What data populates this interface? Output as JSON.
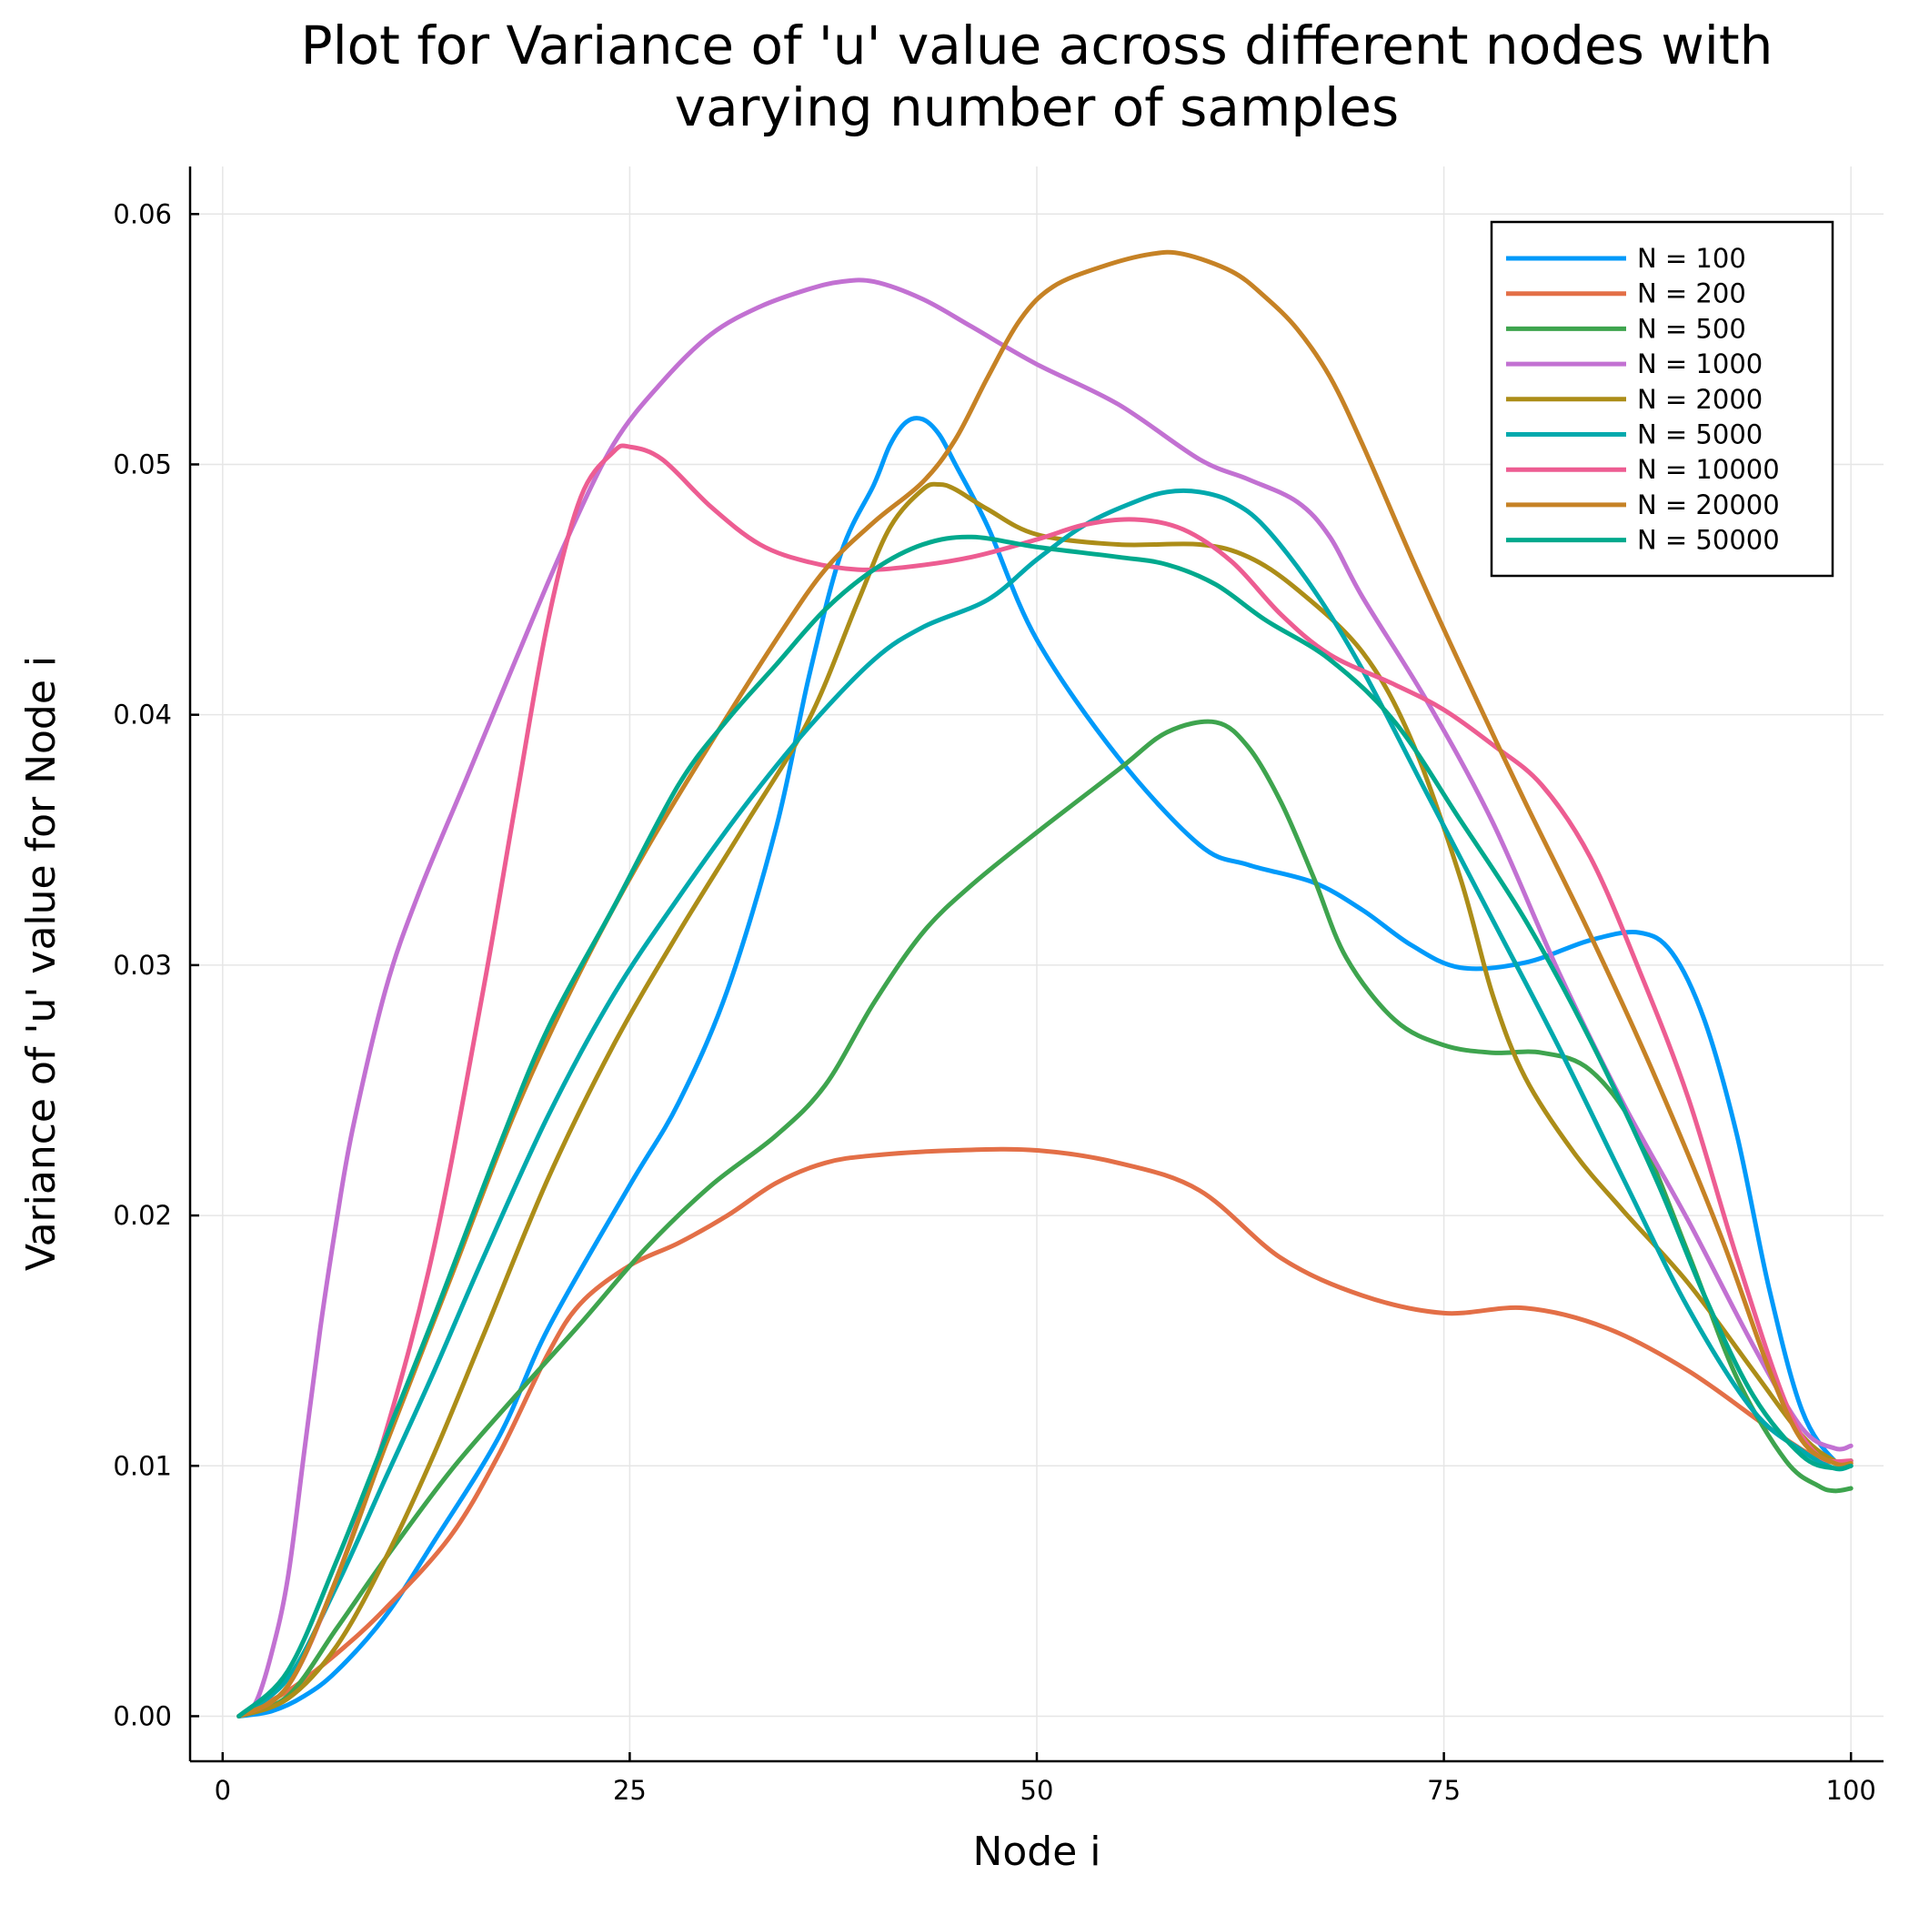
{
  "chart_data": {
    "type": "line",
    "title_lines": [
      "Plot for Variance of 'u' value across different nodes with",
      "varying number of samples"
    ],
    "xlabel": "Node i",
    "ylabel": "Variance of 'u' value for Node i",
    "xlim": [
      -2,
      102
    ],
    "ylim": [
      -0.0018,
      0.0619
    ],
    "xticks": [
      0,
      25,
      50,
      75,
      100
    ],
    "xtick_labels": [
      "0",
      "25",
      "50",
      "75",
      "100"
    ],
    "yticks": [
      0.0,
      0.01,
      0.02,
      0.03,
      0.04,
      0.05,
      0.06
    ],
    "ytick_labels": [
      "0.00",
      "0.01",
      "0.02",
      "0.03",
      "0.04",
      "0.05",
      "0.06"
    ],
    "grid": true,
    "legend_position": "top-right",
    "series": [
      {
        "name": "N = 100",
        "color": "#009AFA",
        "points": [
          [
            1,
            0
          ],
          [
            3,
            0.0002
          ],
          [
            5,
            0.0008
          ],
          [
            7,
            0.0018
          ],
          [
            10,
            0.004
          ],
          [
            13,
            0.007
          ],
          [
            17,
            0.0112
          ],
          [
            20,
            0.0155
          ],
          [
            25,
            0.0212
          ],
          [
            28,
            0.0245
          ],
          [
            31,
            0.029
          ],
          [
            34,
            0.0355
          ],
          [
            36,
            0.0415
          ],
          [
            38,
            0.0465
          ],
          [
            40,
            0.0492
          ],
          [
            41,
            0.0508
          ],
          [
            42,
            0.0517
          ],
          [
            43,
            0.0518
          ],
          [
            44,
            0.0512
          ],
          [
            45,
            0.05
          ],
          [
            47,
            0.0475
          ],
          [
            50,
            0.043
          ],
          [
            55,
            0.0383
          ],
          [
            60,
            0.0348
          ],
          [
            63,
            0.034
          ],
          [
            67,
            0.0333
          ],
          [
            70,
            0.0322
          ],
          [
            73,
            0.0308
          ],
          [
            76,
            0.0299
          ],
          [
            80,
            0.0301
          ],
          [
            84,
            0.031
          ],
          [
            87,
            0.0313
          ],
          [
            89,
            0.0305
          ],
          [
            91,
            0.0278
          ],
          [
            93,
            0.0232
          ],
          [
            95,
            0.017
          ],
          [
            97,
            0.0122
          ],
          [
            99,
            0.0102
          ],
          [
            100,
            0.0102
          ]
        ]
      },
      {
        "name": "N = 200",
        "color": "#E36F47",
        "points": [
          [
            1,
            0
          ],
          [
            4,
            0.001
          ],
          [
            7,
            0.0025
          ],
          [
            10,
            0.0043
          ],
          [
            14,
            0.0072
          ],
          [
            17,
            0.0105
          ],
          [
            20,
            0.0145
          ],
          [
            22,
            0.0165
          ],
          [
            25,
            0.018
          ],
          [
            28,
            0.0189
          ],
          [
            31,
            0.02
          ],
          [
            34,
            0.0213
          ],
          [
            37,
            0.0221
          ],
          [
            40,
            0.0224
          ],
          [
            45,
            0.0226
          ],
          [
            50,
            0.0226
          ],
          [
            55,
            0.0221
          ],
          [
            60,
            0.021
          ],
          [
            65,
            0.0183
          ],
          [
            70,
            0.0168
          ],
          [
            75,
            0.0161
          ],
          [
            80,
            0.0163
          ],
          [
            85,
            0.0155
          ],
          [
            90,
            0.0138
          ],
          [
            95,
            0.0115
          ],
          [
            98,
            0.0103
          ],
          [
            100,
            0.0101
          ]
        ]
      },
      {
        "name": "N = 500",
        "color": "#3EA44E",
        "points": [
          [
            1,
            0
          ],
          [
            4,
            0.0008
          ],
          [
            7,
            0.0035
          ],
          [
            10,
            0.0063
          ],
          [
            14,
            0.0098
          ],
          [
            18,
            0.0128
          ],
          [
            22,
            0.0157
          ],
          [
            26,
            0.0187
          ],
          [
            30,
            0.0212
          ],
          [
            34,
            0.0232
          ],
          [
            37,
            0.0252
          ],
          [
            40,
            0.0285
          ],
          [
            43,
            0.0313
          ],
          [
            46,
            0.0332
          ],
          [
            50,
            0.0353
          ],
          [
            55,
            0.0378
          ],
          [
            58,
            0.0393
          ],
          [
            61,
            0.0397
          ],
          [
            63,
            0.0387
          ],
          [
            65,
            0.0365
          ],
          [
            67,
            0.0335
          ],
          [
            69,
            0.0303
          ],
          [
            72,
            0.0278
          ],
          [
            75,
            0.0268
          ],
          [
            78,
            0.0265
          ],
          [
            81,
            0.0265
          ],
          [
            84,
            0.0258
          ],
          [
            87,
            0.0232
          ],
          [
            90,
            0.0185
          ],
          [
            93,
            0.0135
          ],
          [
            96,
            0.0102
          ],
          [
            98,
            0.0092
          ],
          [
            99,
            0.009
          ],
          [
            100,
            0.0091
          ]
        ]
      },
      {
        "name": "N = 1000",
        "color": "#C271D2",
        "points": [
          [
            1,
            0
          ],
          [
            2,
            0.0005
          ],
          [
            3,
            0.0025
          ],
          [
            4,
            0.0055
          ],
          [
            5,
            0.0105
          ],
          [
            6,
            0.0155
          ],
          [
            7,
            0.0198
          ],
          [
            8,
            0.0235
          ],
          [
            10,
            0.029
          ],
          [
            12,
            0.0328
          ],
          [
            15,
            0.0375
          ],
          [
            18,
            0.0422
          ],
          [
            21,
            0.0468
          ],
          [
            24,
            0.0508
          ],
          [
            27,
            0.0533
          ],
          [
            30,
            0.0552
          ],
          [
            33,
            0.0563
          ],
          [
            36,
            0.057
          ],
          [
            38,
            0.0573
          ],
          [
            40,
            0.0573
          ],
          [
            43,
            0.0566
          ],
          [
            46,
            0.0555
          ],
          [
            50,
            0.054
          ],
          [
            55,
            0.0524
          ],
          [
            60,
            0.0502
          ],
          [
            63,
            0.0494
          ],
          [
            66,
            0.0485
          ],
          [
            68,
            0.0471
          ],
          [
            70,
            0.0447
          ],
          [
            74,
            0.0405
          ],
          [
            78,
            0.0357
          ],
          [
            82,
            0.0298
          ],
          [
            86,
            0.0245
          ],
          [
            90,
            0.0198
          ],
          [
            94,
            0.0148
          ],
          [
            97,
            0.0115
          ],
          [
            99,
            0.0107
          ],
          [
            100,
            0.0108
          ]
        ]
      },
      {
        "name": "N = 2000",
        "color": "#AC8D18",
        "points": [
          [
            1,
            0
          ],
          [
            4,
            0.0007
          ],
          [
            7,
            0.0028
          ],
          [
            10,
            0.0063
          ],
          [
            13,
            0.0105
          ],
          [
            16,
            0.0152
          ],
          [
            20,
            0.0215
          ],
          [
            24,
            0.0268
          ],
          [
            28,
            0.0313
          ],
          [
            32,
            0.0355
          ],
          [
            36,
            0.0398
          ],
          [
            39,
            0.0445
          ],
          [
            41,
            0.0475
          ],
          [
            43,
            0.049
          ],
          [
            44,
            0.0492
          ],
          [
            45,
            0.049
          ],
          [
            47,
            0.0482
          ],
          [
            50,
            0.0472
          ],
          [
            55,
            0.0468
          ],
          [
            60,
            0.0468
          ],
          [
            63,
            0.0463
          ],
          [
            66,
            0.045
          ],
          [
            70,
            0.0425
          ],
          [
            73,
            0.039
          ],
          [
            76,
            0.0335
          ],
          [
            78,
            0.0288
          ],
          [
            80,
            0.0255
          ],
          [
            83,
            0.0225
          ],
          [
            86,
            0.0202
          ],
          [
            90,
            0.0173
          ],
          [
            94,
            0.0138
          ],
          [
            97,
            0.0112
          ],
          [
            99,
            0.0102
          ],
          [
            100,
            0.0102
          ]
        ]
      },
      {
        "name": "N = 5000",
        "color": "#00A9AD",
        "points": [
          [
            1,
            0
          ],
          [
            4,
            0.0015
          ],
          [
            7,
            0.0052
          ],
          [
            10,
            0.0095
          ],
          [
            13,
            0.0138
          ],
          [
            16,
            0.0183
          ],
          [
            20,
            0.024
          ],
          [
            24,
            0.0288
          ],
          [
            28,
            0.0327
          ],
          [
            32,
            0.0363
          ],
          [
            36,
            0.0395
          ],
          [
            40,
            0.0422
          ],
          [
            43,
            0.0435
          ],
          [
            47,
            0.0446
          ],
          [
            50,
            0.0462
          ],
          [
            53,
            0.0476
          ],
          [
            56,
            0.0485
          ],
          [
            58,
            0.0489
          ],
          [
            60,
            0.0489
          ],
          [
            62,
            0.0485
          ],
          [
            64,
            0.0475
          ],
          [
            67,
            0.045
          ],
          [
            70,
            0.0418
          ],
          [
            74,
            0.0368
          ],
          [
            78,
            0.0318
          ],
          [
            82,
            0.0268
          ],
          [
            86,
            0.0215
          ],
          [
            90,
            0.0163
          ],
          [
            94,
            0.0122
          ],
          [
            97,
            0.0106
          ],
          [
            99,
            0.0099
          ],
          [
            100,
            0.01
          ]
        ]
      },
      {
        "name": "N = 10000",
        "color": "#ED5D92",
        "points": [
          [
            1,
            0
          ],
          [
            4,
            0.0012
          ],
          [
            7,
            0.0055
          ],
          [
            10,
            0.0113
          ],
          [
            13,
            0.0188
          ],
          [
            16,
            0.029
          ],
          [
            18,
            0.0365
          ],
          [
            20,
            0.0438
          ],
          [
            22,
            0.0487
          ],
          [
            24,
            0.0505
          ],
          [
            25,
            0.0507
          ],
          [
            27,
            0.0502
          ],
          [
            30,
            0.0483
          ],
          [
            33,
            0.0468
          ],
          [
            36,
            0.0461
          ],
          [
            39,
            0.0458
          ],
          [
            42,
            0.0459
          ],
          [
            46,
            0.0463
          ],
          [
            50,
            0.047
          ],
          [
            53,
            0.0476
          ],
          [
            56,
            0.0478
          ],
          [
            59,
            0.0474
          ],
          [
            62,
            0.0461
          ],
          [
            65,
            0.044
          ],
          [
            68,
            0.0424
          ],
          [
            72,
            0.0412
          ],
          [
            75,
            0.0402
          ],
          [
            78,
            0.0388
          ],
          [
            81,
            0.0372
          ],
          [
            84,
            0.0343
          ],
          [
            87,
            0.0298
          ],
          [
            90,
            0.0247
          ],
          [
            93,
            0.0183
          ],
          [
            96,
            0.0125
          ],
          [
            98,
            0.0104
          ],
          [
            100,
            0.0102
          ]
        ]
      },
      {
        "name": "N = 20000",
        "color": "#C68225",
        "points": [
          [
            1,
            0
          ],
          [
            4,
            0.0012
          ],
          [
            7,
            0.0055
          ],
          [
            10,
            0.0108
          ],
          [
            14,
            0.0175
          ],
          [
            18,
            0.0242
          ],
          [
            22,
            0.0298
          ],
          [
            26,
            0.0346
          ],
          [
            30,
            0.0389
          ],
          [
            34,
            0.043
          ],
          [
            37,
            0.0458
          ],
          [
            40,
            0.0477
          ],
          [
            43,
            0.0493
          ],
          [
            45,
            0.051
          ],
          [
            47,
            0.0535
          ],
          [
            49,
            0.0558
          ],
          [
            51,
            0.0571
          ],
          [
            54,
            0.0579
          ],
          [
            57,
            0.0584
          ],
          [
            59,
            0.0584
          ],
          [
            62,
            0.0577
          ],
          [
            64,
            0.0567
          ],
          [
            66,
            0.0554
          ],
          [
            68,
            0.0535
          ],
          [
            70,
            0.0508
          ],
          [
            73,
            0.0463
          ],
          [
            76,
            0.042
          ],
          [
            80,
            0.0365
          ],
          [
            84,
            0.0312
          ],
          [
            88,
            0.0255
          ],
          [
            92,
            0.0192
          ],
          [
            95,
            0.0138
          ],
          [
            97,
            0.011
          ],
          [
            99,
            0.0101
          ],
          [
            100,
            0.0101
          ]
        ]
      },
      {
        "name": "N = 50000",
        "color": "#00A98D",
        "points": [
          [
            1,
            0
          ],
          [
            4,
            0.0018
          ],
          [
            7,
            0.0062
          ],
          [
            10,
            0.0111
          ],
          [
            13,
            0.016
          ],
          [
            17,
            0.0228
          ],
          [
            20,
            0.0275
          ],
          [
            24,
            0.0323
          ],
          [
            28,
            0.0372
          ],
          [
            31,
            0.0398
          ],
          [
            34,
            0.042
          ],
          [
            37,
            0.0442
          ],
          [
            40,
            0.0458
          ],
          [
            43,
            0.0468
          ],
          [
            46,
            0.0471
          ],
          [
            50,
            0.0467
          ],
          [
            55,
            0.0463
          ],
          [
            58,
            0.046
          ],
          [
            61,
            0.0452
          ],
          [
            64,
            0.0438
          ],
          [
            68,
            0.0422
          ],
          [
            72,
            0.0397
          ],
          [
            76,
            0.0358
          ],
          [
            80,
            0.0318
          ],
          [
            84,
            0.027
          ],
          [
            88,
            0.0215
          ],
          [
            91,
            0.0168
          ],
          [
            94,
            0.0128
          ],
          [
            97,
            0.0104
          ],
          [
            99,
            0.0099
          ],
          [
            100,
            0.01
          ]
        ]
      }
    ]
  }
}
